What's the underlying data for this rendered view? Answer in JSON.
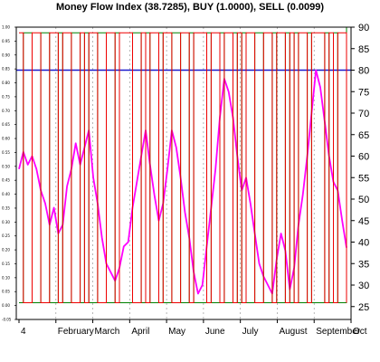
{
  "chart_data": {
    "type": "line",
    "title": "Money Flow Index (38.7285), BUY (1.0000), SELL (0.0099)",
    "x_labels": [
      "4",
      "February",
      "March",
      "April",
      "May",
      "June",
      "July",
      "August",
      "September",
      "Oct"
    ],
    "left_axis": {
      "ylim": [
        -0.05,
        1.0
      ],
      "ticks": [
        1.0,
        0.95,
        0.9,
        0.85,
        0.8,
        0.75,
        0.7,
        0.65,
        0.6,
        0.55,
        0.5,
        0.45,
        0.4,
        0.35,
        0.3,
        0.25,
        0.2,
        0.15,
        0.1,
        0.05,
        0.0,
        -0.05
      ],
      "tick_labels": [
        "1.00",
        "0.95",
        "0.90",
        "0.85",
        "0.80",
        "0.75",
        "0.70",
        "0.65",
        "0.60",
        "0.55",
        "0.50",
        "0.45",
        "0.40",
        "0.35",
        "0.30",
        "0.25",
        "0.20",
        "0.15",
        "0.10",
        "0.05",
        "0.00",
        "-0.05"
      ]
    },
    "right_axis": {
      "ylim": [
        22,
        90
      ],
      "ticks": [
        90,
        85,
        80,
        75,
        70,
        65,
        60,
        55,
        50,
        45,
        40,
        35,
        30,
        25
      ],
      "tick_labels": [
        "90",
        "85",
        "80",
        "75",
        "70",
        "65",
        "60",
        "55",
        "50",
        "45",
        "40",
        "35",
        "30",
        "25"
      ]
    },
    "reference_line": {
      "value": 80,
      "axis": "right",
      "color": "#1a1acc"
    },
    "grid": true,
    "series": [
      {
        "name": "Money Flow Index",
        "color": "#ff00ff",
        "axis": "right",
        "values": [
          57,
          61,
          58,
          60,
          57,
          52,
          49,
          44,
          48,
          42,
          44,
          53,
          57,
          63,
          58,
          62,
          66,
          55,
          49,
          41,
          35,
          33,
          31,
          34,
          39,
          40,
          48,
          54,
          60,
          66,
          58,
          51,
          45,
          49,
          57,
          66,
          62,
          55,
          47,
          41,
          33,
          28,
          30,
          39,
          48,
          57,
          69,
          78,
          75,
          69,
          60,
          52,
          55,
          49,
          42,
          35,
          32,
          30,
          28,
          36,
          42,
          38,
          29,
          34,
          44,
          51,
          60,
          70,
          80,
          76,
          68,
          60,
          54,
          52,
          45,
          38.7
        ]
      },
      {
        "name": "BUY",
        "color": "#008000",
        "axis": "left",
        "values": [
          0.01,
          0.98,
          0.98,
          0.01,
          0.01,
          0.98,
          0.98,
          0.01,
          0.01,
          0.98,
          0.01,
          0.01,
          0.98,
          0.98,
          0.01,
          0.98,
          0.01,
          0.01,
          0.98,
          0.98,
          0.01,
          0.01,
          0.98,
          0.01,
          0.01,
          0.01,
          0.98,
          0.98,
          0.01,
          0.98,
          0.01,
          0.01,
          0.98,
          0.01,
          0.01,
          0.98,
          0.98,
          0.01,
          0.01,
          0.98,
          0.01,
          0.01,
          0.01,
          0.98,
          0.01,
          0.01,
          0.98,
          0.01,
          0.01,
          0.98,
          0.01,
          0.98,
          0.01,
          0.01,
          0.98,
          0.98,
          0.01,
          0.01,
          0.98,
          0.01,
          0.01,
          0.98,
          0.01,
          0.98,
          0.01,
          0.01,
          0.98,
          0.01,
          0.01,
          0.01,
          0.98,
          0.01,
          0.98,
          0.01,
          0.01,
          1.0
        ]
      },
      {
        "name": "SELL",
        "color": "#ee0000",
        "axis": "left",
        "values": [
          0.98,
          0.01,
          0.01,
          0.98,
          0.98,
          0.01,
          0.01,
          0.98,
          0.98,
          0.01,
          0.98,
          0.98,
          0.01,
          0.01,
          0.98,
          0.01,
          0.98,
          0.98,
          0.01,
          0.01,
          0.98,
          0.98,
          0.01,
          0.98,
          0.98,
          0.98,
          0.01,
          0.01,
          0.98,
          0.01,
          0.98,
          0.98,
          0.01,
          0.98,
          0.98,
          0.01,
          0.01,
          0.98,
          0.98,
          0.01,
          0.98,
          0.98,
          0.98,
          0.01,
          0.98,
          0.98,
          0.01,
          0.98,
          0.98,
          0.01,
          0.98,
          0.01,
          0.98,
          0.98,
          0.01,
          0.01,
          0.98,
          0.98,
          0.01,
          0.98,
          0.98,
          0.01,
          0.98,
          0.01,
          0.98,
          0.98,
          0.01,
          0.98,
          0.98,
          0.98,
          0.01,
          0.98,
          0.01,
          0.98,
          0.98,
          0.0099
        ]
      }
    ]
  }
}
